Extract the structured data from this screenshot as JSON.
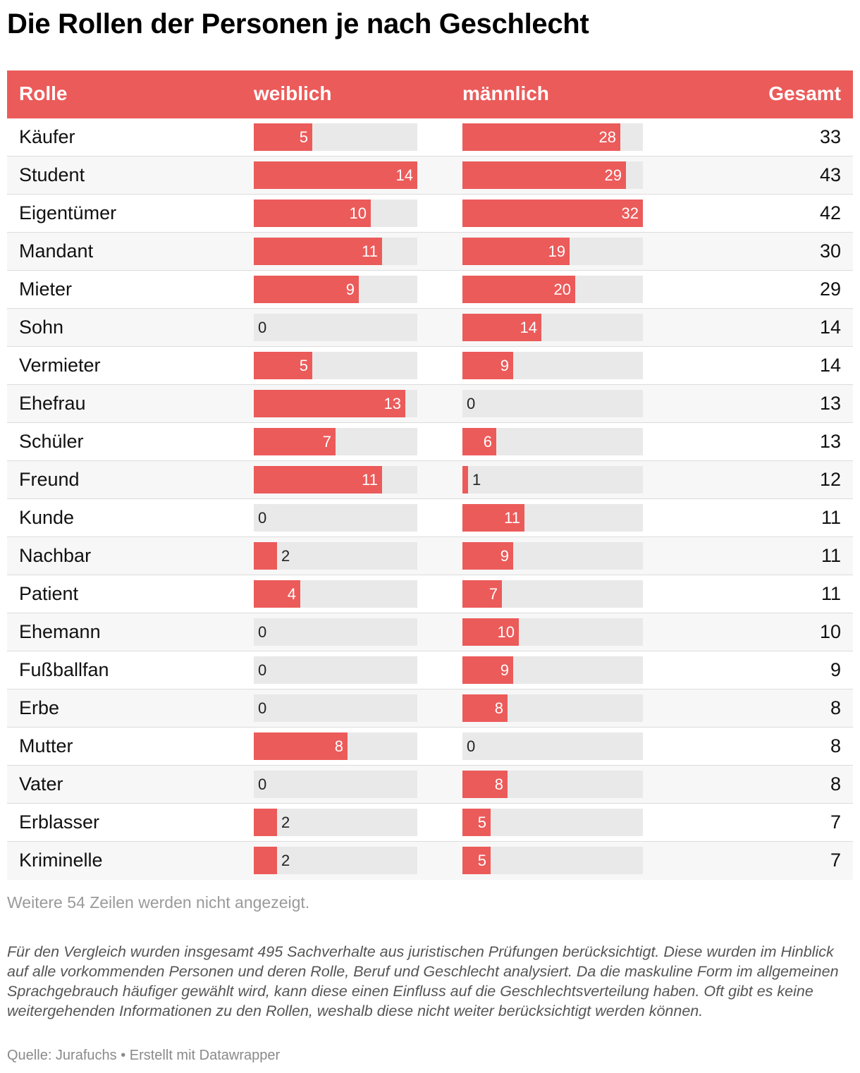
{
  "title": "Die Rollen der Personen je nach Geschlecht",
  "columns": {
    "role": "Rolle",
    "female": "weiblich",
    "male": "männlich",
    "total": "Gesamt"
  },
  "colors": {
    "accent": "#eb5b5a",
    "bar_background": "#e9e9e9"
  },
  "chart_data": {
    "type": "table",
    "bar_scale": {
      "weiblich": [
        0,
        14
      ],
      "männlich": [
        0,
        32
      ]
    },
    "rows": [
      {
        "role": "Käufer",
        "female": 5,
        "male": 28,
        "total": 33
      },
      {
        "role": "Student",
        "female": 14,
        "male": 29,
        "total": 43
      },
      {
        "role": "Eigentümer",
        "female": 10,
        "male": 32,
        "total": 42
      },
      {
        "role": "Mandant",
        "female": 11,
        "male": 19,
        "total": 30
      },
      {
        "role": "Mieter",
        "female": 9,
        "male": 20,
        "total": 29
      },
      {
        "role": "Sohn",
        "female": 0,
        "male": 14,
        "total": 14
      },
      {
        "role": "Vermieter",
        "female": 5,
        "male": 9,
        "total": 14
      },
      {
        "role": "Ehefrau",
        "female": 13,
        "male": 0,
        "total": 13
      },
      {
        "role": "Schüler",
        "female": 7,
        "male": 6,
        "total": 13
      },
      {
        "role": "Freund",
        "female": 11,
        "male": 1,
        "total": 12
      },
      {
        "role": "Kunde",
        "female": 0,
        "male": 11,
        "total": 11
      },
      {
        "role": "Nachbar",
        "female": 2,
        "male": 9,
        "total": 11
      },
      {
        "role": "Patient",
        "female": 4,
        "male": 7,
        "total": 11
      },
      {
        "role": "Ehemann",
        "female": 0,
        "male": 10,
        "total": 10
      },
      {
        "role": "Fußballfan",
        "female": 0,
        "male": 9,
        "total": 9
      },
      {
        "role": "Erbe",
        "female": 0,
        "male": 8,
        "total": 8
      },
      {
        "role": "Mutter",
        "female": 8,
        "male": 0,
        "total": 8
      },
      {
        "role": "Vater",
        "female": 0,
        "male": 8,
        "total": 8
      },
      {
        "role": "Erblasser",
        "female": 2,
        "male": 5,
        "total": 7
      },
      {
        "role": "Kriminelle",
        "female": 2,
        "male": 5,
        "total": 7
      }
    ]
  },
  "hidden_rows_note": "Weitere 54 Zeilen werden nicht angezeigt.",
  "notes": "Für den Vergleich wurden insgesamt 495 Sachverhalte aus juristischen Prüfungen berücksichtigt. Diese wurden im Hinblick auf alle vorkommenden Personen und deren Rolle, Beruf und Geschlecht analysiert. Da die maskuline Form im allgemeinen Sprachgebrauch häufiger gewählt wird, kann diese einen Einfluss auf die Geschlechtsverteilung haben. Oft gibt es keine weitergehenden Informationen zu den Rollen, weshalb diese nicht weiter berücksichtigt werden können.",
  "source": "Quelle: Jurafuchs • Erstellt mit Datawrapper"
}
